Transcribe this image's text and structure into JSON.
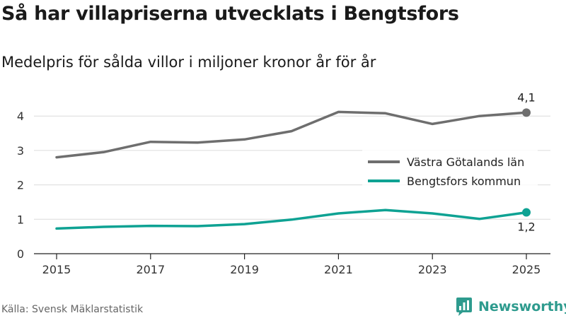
{
  "title": "Så har villapriserna utvecklats i Bengtsfors",
  "subtitle": "Medelpris för sålda villor i miljoner kronor år för år",
  "source": "Källa: Svensk Mäklarstatistik",
  "brand": "Newsworthy",
  "chart_data": {
    "type": "line",
    "x": [
      2015,
      2016,
      2017,
      2018,
      2019,
      2020,
      2021,
      2022,
      2023,
      2024,
      2025
    ],
    "x_tick_labels": [
      "2015",
      "2017",
      "2019",
      "2021",
      "2023",
      "2025"
    ],
    "y_ticks": [
      0,
      1,
      2,
      3,
      4
    ],
    "ylim": [
      0,
      4.5
    ],
    "series": [
      {
        "name": "Västra Götalands län",
        "color": "#6e6e6e",
        "values": [
          2.8,
          2.95,
          3.25,
          3.23,
          3.32,
          3.56,
          4.12,
          4.08,
          3.77,
          4.0,
          4.1
        ],
        "end_label": "4,1"
      },
      {
        "name": "Bengtsfors kommun",
        "color": "#0ea293",
        "values": [
          0.73,
          0.78,
          0.81,
          0.8,
          0.86,
          0.99,
          1.17,
          1.27,
          1.17,
          1.01,
          1.2
        ],
        "end_label": "1,2"
      }
    ]
  }
}
